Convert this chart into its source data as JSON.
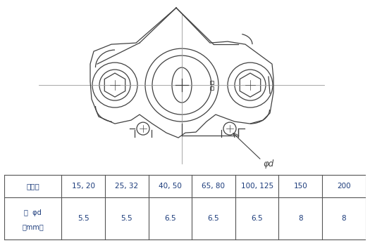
{
  "table_header": [
    "サイズ",
    "15, 20",
    "25, 32",
    "40, 50",
    "65, 80",
    "100, 125",
    "150",
    "200"
  ],
  "row1_label": "径  φd\n［mm］",
  "row1_values": [
    "5.5",
    "5.5",
    "6.5",
    "6.5",
    "6.5",
    "8",
    "8"
  ],
  "table_color": "#1a3a7a",
  "border_color": "#555555",
  "drawing_color": "#404040",
  "cl_color": "#999999",
  "bg_color": "#ffffff",
  "phi_label": "φd"
}
